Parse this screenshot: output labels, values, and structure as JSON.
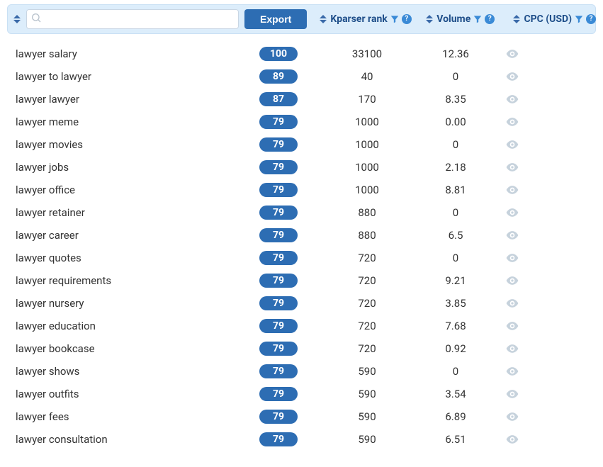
{
  "colors": {
    "header_bg": "#dcedfb",
    "header_border": "#c9e0f4",
    "primary": "#2d6db3",
    "accent": "#3a8ad6",
    "text": "#333333",
    "header_text": "#1f4f8a",
    "eye_row": "#c6d2dc"
  },
  "header": {
    "search": {
      "value": "",
      "placeholder": ""
    },
    "export_label": "Export",
    "columns": {
      "rank": "Kparser rank",
      "volume": "Volume",
      "cpc": "CPC (USD)"
    },
    "help_glyph": "?"
  },
  "rows": [
    {
      "keyword": "lawyer salary",
      "rank": "100",
      "volume": "33100",
      "cpc": "12.36"
    },
    {
      "keyword": "lawyer to lawyer",
      "rank": "89",
      "volume": "40",
      "cpc": "0"
    },
    {
      "keyword": "lawyer lawyer",
      "rank": "87",
      "volume": "170",
      "cpc": "8.35"
    },
    {
      "keyword": "lawyer meme",
      "rank": "79",
      "volume": "1000",
      "cpc": "0.00"
    },
    {
      "keyword": "lawyer movies",
      "rank": "79",
      "volume": "1000",
      "cpc": "0"
    },
    {
      "keyword": "lawyer jobs",
      "rank": "79",
      "volume": "1000",
      "cpc": "2.18"
    },
    {
      "keyword": "lawyer office",
      "rank": "79",
      "volume": "1000",
      "cpc": "8.81"
    },
    {
      "keyword": "lawyer retainer",
      "rank": "79",
      "volume": "880",
      "cpc": "0"
    },
    {
      "keyword": "lawyer career",
      "rank": "79",
      "volume": "880",
      "cpc": "6.5"
    },
    {
      "keyword": "lawyer quotes",
      "rank": "79",
      "volume": "720",
      "cpc": "0"
    },
    {
      "keyword": "lawyer requirements",
      "rank": "79",
      "volume": "720",
      "cpc": "9.21"
    },
    {
      "keyword": "lawyer nursery",
      "rank": "79",
      "volume": "720",
      "cpc": "3.85"
    },
    {
      "keyword": "lawyer education",
      "rank": "79",
      "volume": "720",
      "cpc": "7.68"
    },
    {
      "keyword": "lawyer bookcase",
      "rank": "79",
      "volume": "720",
      "cpc": "0.92"
    },
    {
      "keyword": "lawyer shows",
      "rank": "79",
      "volume": "590",
      "cpc": "0"
    },
    {
      "keyword": "lawyer outfits",
      "rank": "79",
      "volume": "590",
      "cpc": "3.54"
    },
    {
      "keyword": "lawyer fees",
      "rank": "79",
      "volume": "590",
      "cpc": "6.89"
    },
    {
      "keyword": "lawyer consultation",
      "rank": "79",
      "volume": "590",
      "cpc": "6.51"
    }
  ]
}
